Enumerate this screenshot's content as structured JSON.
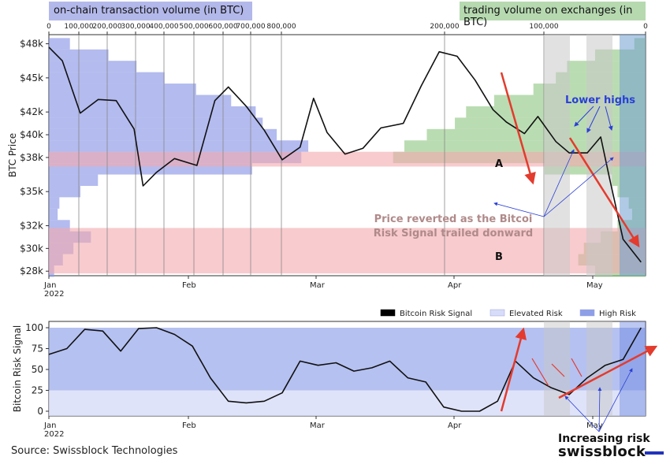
{
  "header": {
    "left_badge": "on-chain transaction volume (in BTC)",
    "right_badge": "trading volume on exchanges (in BTC)"
  },
  "colors": {
    "onchain_volume": "#8a96e6",
    "exchange_volume": "#8cc47f",
    "support_zone": "#f3a9ad",
    "grey_shade": "#c8c8c8",
    "risk_shade": "#6f9fd0",
    "price_line": "#111111",
    "arrow_red": "#e33b2e",
    "annotation_blue": "#2a3fd6",
    "elevated_risk": "#d7dcf8",
    "high_risk": "#8e9fe8"
  },
  "chart_data": [
    {
      "type": "line",
      "ylabel": "BTC Price",
      "y_ticks": [
        "$48k",
        "$45k",
        "$42k",
        "$40k",
        "$38k",
        "$35k",
        "$32k",
        "$30k",
        "$28k"
      ],
      "y_tick_values": [
        48000,
        45000,
        42000,
        40000,
        38000,
        35000,
        32000,
        30000,
        28000
      ],
      "x_ticks": [
        "Jan\n2022",
        "Feb",
        "Mar",
        "Apr",
        "May"
      ],
      "top_left_axis_ticks": [
        "0",
        "100,000",
        "200,000",
        "300,000",
        "400,000",
        "500,000",
        "600,000",
        "700,000",
        "800,000"
      ],
      "top_right_axis_ticks": [
        "200,000",
        "100,000",
        "0"
      ],
      "zones": [
        {
          "label": "A",
          "from": 37200,
          "to": 38500
        },
        {
          "label": "B",
          "from": 27800,
          "to": 31800
        }
      ],
      "annotations": {
        "lower_highs": "Lower highs",
        "price_reverted": "Price reverted as the Bitcoin Risk Signal trailed donward"
      },
      "price_series": {
        "dates": [
          "2022-01-01",
          "2022-01-04",
          "2022-01-08",
          "2022-01-12",
          "2022-01-16",
          "2022-01-20",
          "2022-01-22",
          "2022-01-25",
          "2022-01-29",
          "2022-02-03",
          "2022-02-07",
          "2022-02-10",
          "2022-02-14",
          "2022-02-18",
          "2022-02-22",
          "2022-02-26",
          "2022-03-01",
          "2022-03-04",
          "2022-03-08",
          "2022-03-12",
          "2022-03-16",
          "2022-03-21",
          "2022-03-25",
          "2022-03-29",
          "2022-04-02",
          "2022-04-06",
          "2022-04-10",
          "2022-04-13",
          "2022-04-17",
          "2022-04-20",
          "2022-04-24",
          "2022-04-27",
          "2022-05-01",
          "2022-05-04",
          "2022-05-06",
          "2022-05-09",
          "2022-05-11",
          "2022-05-13"
        ],
        "values": [
          47700,
          46500,
          41900,
          43100,
          43000,
          40500,
          35500,
          36700,
          37900,
          37300,
          43000,
          44200,
          42500,
          40400,
          37800,
          38900,
          43200,
          40200,
          38300,
          38800,
          40600,
          41000,
          44300,
          47300,
          46900,
          44800,
          42200,
          41100,
          40100,
          41600,
          39400,
          38400,
          38400,
          39800,
          36100,
          30800,
          29800,
          28800
        ]
      },
      "onchain_volume_profile": {
        "prices": [
          48000,
          47000,
          46000,
          45000,
          44000,
          43000,
          42000,
          41000,
          40000,
          39000,
          38000,
          37000,
          36000,
          35000,
          34000,
          33000,
          32000,
          31000,
          30000,
          29000,
          28000
        ],
        "volumes": [
          60000,
          170000,
          250000,
          330000,
          420000,
          520000,
          590000,
          610000,
          650000,
          740000,
          720000,
          580000,
          140000,
          90000,
          30000,
          25000,
          60000,
          120000,
          70000,
          40000,
          15000
        ]
      },
      "exchange_volume_profile": {
        "prices": [
          48000,
          47000,
          46000,
          45000,
          44000,
          43000,
          42000,
          41000,
          40000,
          39000,
          38000,
          37000,
          36000,
          35000,
          34000,
          33000,
          32000,
          31000,
          30000,
          29000,
          28000
        ],
        "volumes": [
          10000,
          45000,
          70000,
          80000,
          100000,
          135000,
          160000,
          170000,
          195000,
          215000,
          225000,
          90000,
          30000,
          25000,
          15000,
          12000,
          25000,
          40000,
          55000,
          60000,
          45000
        ]
      }
    },
    {
      "type": "line",
      "ylabel": "Bitcoin Risk Signal",
      "y_ticks": [
        "100",
        "75",
        "50",
        "25",
        "0"
      ],
      "y_tick_values": [
        100,
        75,
        50,
        25,
        0
      ],
      "x_ticks": [
        "Jan\n2022",
        "Feb",
        "Mar",
        "Apr",
        "May"
      ],
      "legend": [
        "Bitcoin Risk Signal",
        "Elevated Risk",
        "High Risk"
      ],
      "annotation": "Increasing risk",
      "risk_series": {
        "dates": [
          "2022-01-01",
          "2022-01-05",
          "2022-01-09",
          "2022-01-13",
          "2022-01-17",
          "2022-01-21",
          "2022-01-25",
          "2022-01-29",
          "2022-02-02",
          "2022-02-06",
          "2022-02-10",
          "2022-02-14",
          "2022-02-18",
          "2022-02-22",
          "2022-02-26",
          "2022-03-02",
          "2022-03-06",
          "2022-03-10",
          "2022-03-14",
          "2022-03-18",
          "2022-03-22",
          "2022-03-26",
          "2022-03-30",
          "2022-04-03",
          "2022-04-07",
          "2022-04-11",
          "2022-04-15",
          "2022-04-19",
          "2022-04-23",
          "2022-04-27",
          "2022-05-01",
          "2022-05-05",
          "2022-05-09",
          "2022-05-13"
        ],
        "values": [
          68,
          75,
          98,
          96,
          72,
          99,
          100,
          92,
          78,
          40,
          12,
          10,
          12,
          22,
          60,
          55,
          58,
          48,
          52,
          60,
          40,
          35,
          5,
          0,
          0,
          12,
          60,
          40,
          28,
          20,
          40,
          55,
          62,
          100
        ]
      }
    }
  ],
  "footer": {
    "source": "Source: Swissblock Technologies",
    "brand": "swissblock"
  }
}
